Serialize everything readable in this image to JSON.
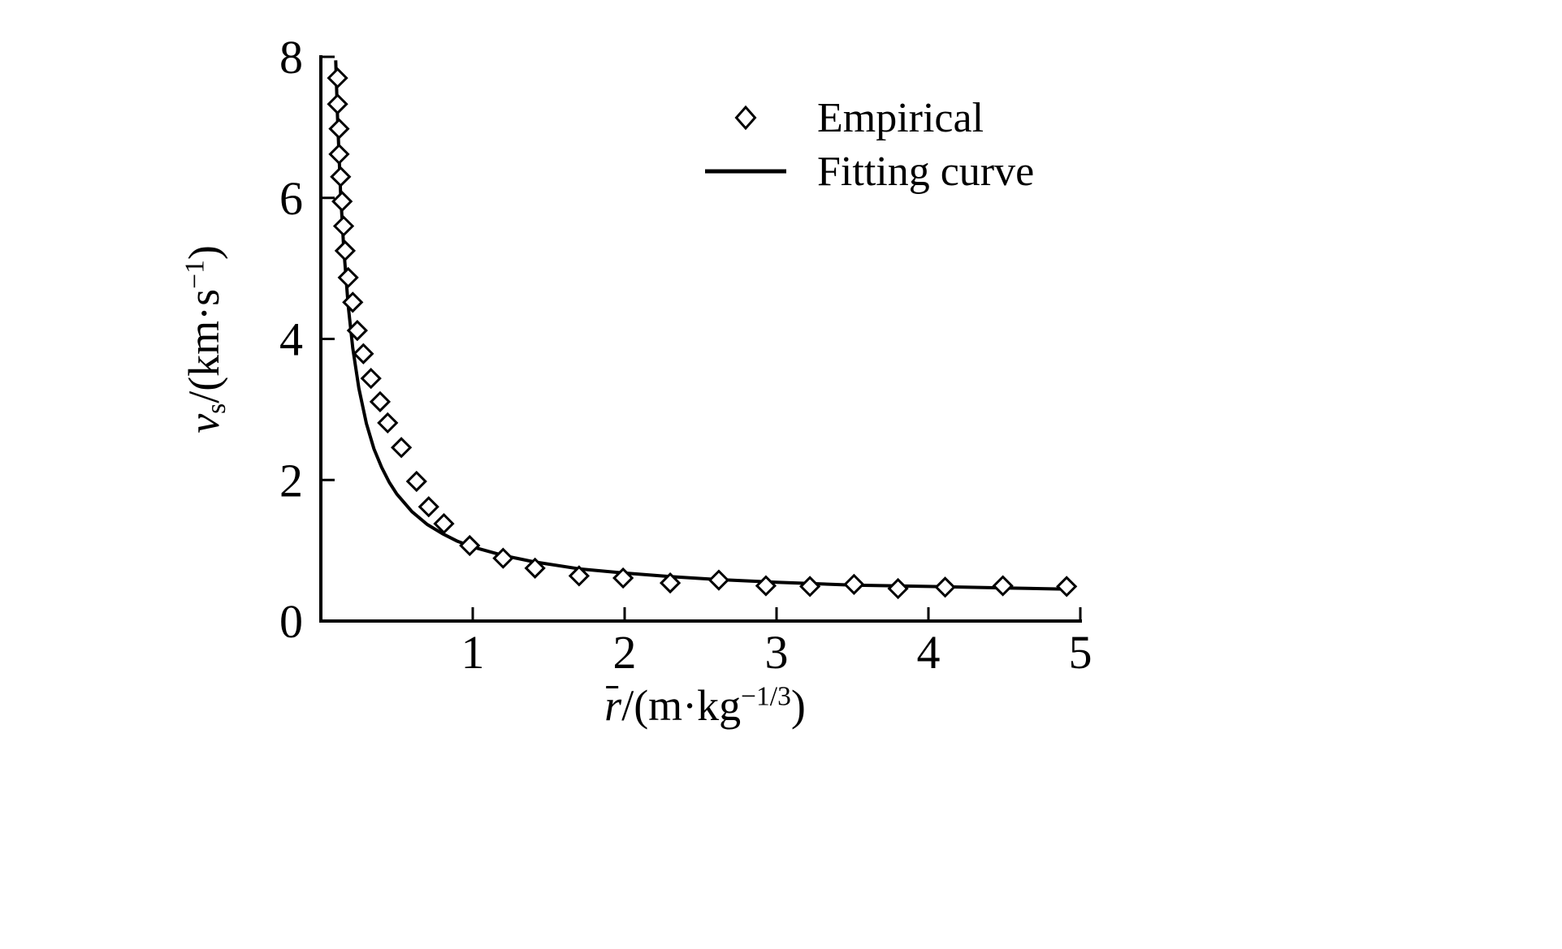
{
  "figure": {
    "background": "#ffffff",
    "ink": "#000000"
  },
  "chart_data": {
    "type": "scatter",
    "title": "",
    "xlabel": "r̄/(m·kg^(−1/3))",
    "ylabel": "v_s/(km·s^(−1))",
    "xlabel_parts": {
      "var": "r",
      "mid": "/(m·kg",
      "sup": "−1/3",
      "end": ")"
    },
    "ylabel_parts": {
      "var": "v",
      "sub": "s",
      "mid": "/(km·s",
      "sup": "−1",
      "end": ")"
    },
    "xlim": [
      0,
      5
    ],
    "ylim": [
      0,
      8
    ],
    "xticks": [
      1,
      2,
      3,
      4,
      5
    ],
    "yticks": [
      0,
      2,
      4,
      6,
      8
    ],
    "grid": false,
    "legend_position": "upper right",
    "series": [
      {
        "name": "Empirical",
        "type": "scatter",
        "marker": "open-diamond",
        "color": "#000000",
        "points": [
          [
            0.11,
            7.7
          ],
          [
            0.11,
            7.33
          ],
          [
            0.12,
            6.98
          ],
          [
            0.12,
            6.62
          ],
          [
            0.13,
            6.3
          ],
          [
            0.14,
            5.95
          ],
          [
            0.15,
            5.6
          ],
          [
            0.16,
            5.25
          ],
          [
            0.18,
            4.87
          ],
          [
            0.21,
            4.52
          ],
          [
            0.24,
            4.12
          ],
          [
            0.28,
            3.79
          ],
          [
            0.33,
            3.44
          ],
          [
            0.39,
            3.11
          ],
          [
            0.44,
            2.81
          ],
          [
            0.53,
            2.46
          ],
          [
            0.63,
            1.98
          ],
          [
            0.71,
            1.62
          ],
          [
            0.81,
            1.38
          ],
          [
            0.98,
            1.07
          ],
          [
            1.2,
            0.89
          ],
          [
            1.41,
            0.75
          ],
          [
            1.7,
            0.64
          ],
          [
            1.99,
            0.61
          ],
          [
            2.3,
            0.54
          ],
          [
            2.62,
            0.58
          ],
          [
            2.93,
            0.5
          ],
          [
            3.22,
            0.49
          ],
          [
            3.51,
            0.52
          ],
          [
            3.8,
            0.46
          ],
          [
            4.11,
            0.48
          ],
          [
            4.49,
            0.5
          ],
          [
            4.91,
            0.49
          ]
        ]
      },
      {
        "name": "Fitting curve",
        "type": "line",
        "color": "#000000",
        "points": [
          [
            0.098,
            7.95
          ],
          [
            0.11,
            7.12
          ],
          [
            0.13,
            6.07
          ],
          [
            0.15,
            5.3
          ],
          [
            0.18,
            4.47
          ],
          [
            0.21,
            3.87
          ],
          [
            0.25,
            3.3
          ],
          [
            0.3,
            2.8
          ],
          [
            0.35,
            2.44
          ],
          [
            0.4,
            2.18
          ],
          [
            0.45,
            1.97
          ],
          [
            0.5,
            1.8
          ],
          [
            0.6,
            1.55
          ],
          [
            0.7,
            1.37
          ],
          [
            0.8,
            1.24
          ],
          [
            0.9,
            1.13
          ],
          [
            1.0,
            1.05
          ],
          [
            1.2,
            0.93
          ],
          [
            1.4,
            0.84
          ],
          [
            1.7,
            0.74
          ],
          [
            2.0,
            0.68
          ],
          [
            2.3,
            0.63
          ],
          [
            2.6,
            0.59
          ],
          [
            3.0,
            0.55
          ],
          [
            3.5,
            0.51
          ],
          [
            4.0,
            0.49
          ],
          [
            4.5,
            0.47
          ],
          [
            4.95,
            0.45
          ]
        ]
      }
    ]
  }
}
